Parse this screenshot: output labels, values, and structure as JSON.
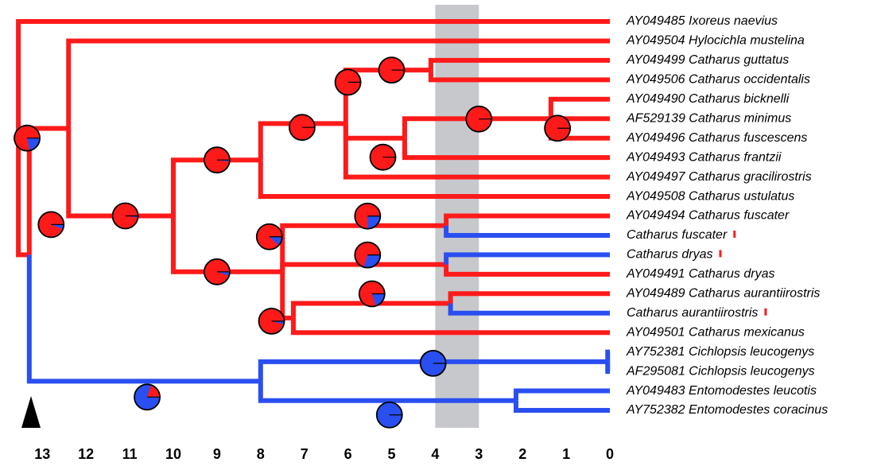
{
  "colors": {
    "red": "#ff1a1a",
    "blue": "#2a4ff0",
    "band": "#c6c8cc",
    "outline": "#000000",
    "flag": "#ff1a1a",
    "root_marker": "#000000"
  },
  "axis": {
    "ticks": [
      "13",
      "12",
      "11",
      "10",
      "9",
      "8",
      "7",
      "6",
      "5",
      "4",
      "3",
      "2",
      "1",
      "0"
    ],
    "highlight_band": [
      4,
      3
    ]
  },
  "taxa": [
    {
      "label": "AY049485 Ixoreus naevius",
      "flag": false
    },
    {
      "label": "AY049504 Hylocichla mustelina",
      "flag": false
    },
    {
      "label": "AY049499 Catharus guttatus",
      "flag": false
    },
    {
      "label": "AY049506 Catharus occidentalis",
      "flag": false
    },
    {
      "label": "AY049490 Catharus bicknelli",
      "flag": false
    },
    {
      "label": "AF529139 Catharus minimus",
      "flag": false
    },
    {
      "label": "AY049496 Catharus fuscescens",
      "flag": false
    },
    {
      "label": "AY049493 Catharus frantzii",
      "flag": false
    },
    {
      "label": "AY049497 Catharus gracilirostris",
      "flag": false
    },
    {
      "label": "AY049508 Catharus ustulatus",
      "flag": false
    },
    {
      "label": "AY049494 Catharus fuscater",
      "flag": false
    },
    {
      "label": "Catharus fuscater",
      "flag": true
    },
    {
      "label": "Catharus dryas",
      "flag": true
    },
    {
      "label": "AY049491 Catharus dryas",
      "flag": false
    },
    {
      "label": "AY049489 Catharus aurantiirostris",
      "flag": false
    },
    {
      "label": "Catharus aurantiirostris",
      "flag": true
    },
    {
      "label": "AY049501 Catharus mexicanus",
      "flag": false
    },
    {
      "label": "AY752381 Cichlopsis leucogenys",
      "flag": false
    },
    {
      "label": "AF295081 Cichlopsis leucogenys",
      "flag": false
    },
    {
      "label": "AY049483 Entomodestes leucotis",
      "flag": false
    },
    {
      "label": "AY752382 Entomodestes coracinus",
      "flag": false
    }
  ],
  "tree": {
    "ages": {
      "root": 13.55,
      "n1": 13.3,
      "n2": 12.4,
      "n3": 10.0,
      "n4": 8.0,
      "n5": 6.05,
      "n6": 4.1,
      "n7": 4.7,
      "n8": 1.35,
      "n9": 7.5,
      "n10": 3.75,
      "n11": 3.75,
      "n12": 7.25,
      "n13": 3.65,
      "n14": 8.0,
      "n15": 0.05,
      "n16": 2.15
    },
    "nodes": [
      {
        "id": "root",
        "children": [
          "t0",
          "n1"
        ]
      },
      {
        "id": "n1",
        "children": [
          "n2",
          "n14"
        ]
      },
      {
        "id": "n2",
        "children": [
          "t1",
          "n3"
        ]
      },
      {
        "id": "n3",
        "children": [
          "n4",
          "n9"
        ]
      },
      {
        "id": "n4",
        "children": [
          "n5",
          "t9"
        ]
      },
      {
        "id": "n5",
        "children": [
          "n6",
          "n7",
          "t8"
        ]
      },
      {
        "id": "n6",
        "children": [
          "t2",
          "t3"
        ]
      },
      {
        "id": "n7",
        "children": [
          "n8",
          "t7"
        ]
      },
      {
        "id": "n8",
        "children": [
          "t4",
          "t5",
          "t6"
        ]
      },
      {
        "id": "n9",
        "children": [
          "n10",
          "n11",
          "n12"
        ]
      },
      {
        "id": "n10",
        "children": [
          "t10",
          "t11"
        ]
      },
      {
        "id": "n11",
        "children": [
          "t12",
          "t13"
        ]
      },
      {
        "id": "n12",
        "children": [
          "n13",
          "t16"
        ]
      },
      {
        "id": "n13",
        "children": [
          "t14",
          "t15"
        ]
      },
      {
        "id": "n14",
        "children": [
          "n15",
          "n16"
        ]
      },
      {
        "id": "n15",
        "children": [
          "t17",
          "t18"
        ]
      },
      {
        "id": "n16",
        "children": [
          "t19",
          "t20"
        ]
      }
    ],
    "blue_edges": [
      "n1-n14",
      "n14-n15",
      "n14-n16",
      "n15-t17",
      "n15-t18",
      "n16-t19",
      "n16-t20",
      "n10-t11",
      "n11-t12",
      "n13-t15"
    ],
    "pies": [
      {
        "node": "root",
        "age": 13.35,
        "blue": 0.22
      },
      {
        "node": "n1",
        "age": 12.8,
        "blue": 0.06
      },
      {
        "node": "n3",
        "age": 11.1,
        "blue": 0.02
      },
      {
        "node": "n4",
        "age": 9.0,
        "blue": 0.02
      },
      {
        "node": "n5",
        "age": 6.0,
        "blue": 0.0
      },
      {
        "node": "n6",
        "age": 5.0,
        "blue": 0.0
      },
      {
        "node": "n7",
        "age": 5.2,
        "blue": 0.0
      },
      {
        "node": "n8",
        "age": 1.2,
        "blue": 0.0
      },
      {
        "node": "n7b",
        "age": 3.0,
        "blue": 0.0
      },
      {
        "node": "n4b",
        "age": 7.05,
        "blue": 0.0
      },
      {
        "node": "n9",
        "age": 9.0,
        "blue": 0.05
      },
      {
        "node": "n9b",
        "age": 7.8,
        "blue": 0.12
      },
      {
        "node": "n10",
        "age": 5.55,
        "blue": 0.25
      },
      {
        "node": "n11",
        "age": 5.55,
        "blue": 0.3
      },
      {
        "node": "n13",
        "age": 5.45,
        "blue": 0.2
      },
      {
        "node": "n12",
        "age": 7.75,
        "blue": 0.04
      },
      {
        "node": "n14",
        "age": 10.6,
        "blue": 0.8
      },
      {
        "node": "n15",
        "age": 4.05,
        "blue": 1.0
      },
      {
        "node": "n16",
        "age": 5.05,
        "blue": 1.0
      }
    ]
  }
}
